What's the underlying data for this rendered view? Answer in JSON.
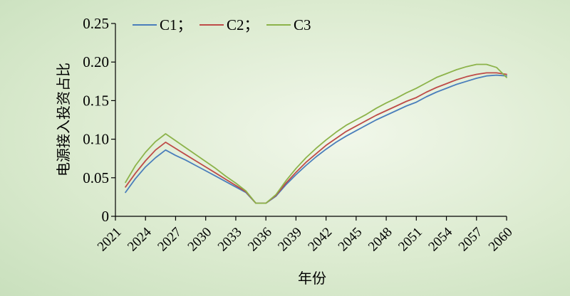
{
  "chart_data": {
    "type": "line",
    "xlabel": "年份",
    "ylabel": "电源接入投资占比",
    "xlim": [
      2021,
      2060
    ],
    "ylim": [
      0,
      0.25
    ],
    "x_ticks": [
      2021,
      2024,
      2027,
      2030,
      2033,
      2036,
      2039,
      2042,
      2045,
      2048,
      2051,
      2054,
      2057,
      2060
    ],
    "y_ticks": [
      0,
      0.05,
      0.1,
      0.15,
      0.2,
      0.25
    ],
    "y_tick_labels": [
      "0",
      "0.05",
      "0.10",
      "0.15",
      "0.20",
      "0.25"
    ],
    "grid": false,
    "legend_position": "top-left",
    "series": [
      {
        "name": "C1；",
        "color": "#4a7ebb",
        "x": [
          2022,
          2023,
          2024,
          2025,
          2026,
          2027,
          2028,
          2029,
          2030,
          2031,
          2032,
          2033,
          2034,
          2035,
          2036,
          2037,
          2038,
          2039,
          2040,
          2041,
          2042,
          2043,
          2044,
          2045,
          2046,
          2047,
          2048,
          2049,
          2050,
          2051,
          2052,
          2053,
          2054,
          2055,
          2056,
          2057,
          2058,
          2059,
          2060
        ],
        "y": [
          0.031,
          0.049,
          0.064,
          0.076,
          0.086,
          0.079,
          0.073,
          0.066,
          0.059,
          0.052,
          0.045,
          0.038,
          0.031,
          0.017,
          0.017,
          0.026,
          0.041,
          0.054,
          0.066,
          0.077,
          0.087,
          0.096,
          0.104,
          0.111,
          0.118,
          0.125,
          0.131,
          0.137,
          0.143,
          0.148,
          0.155,
          0.161,
          0.166,
          0.171,
          0.175,
          0.179,
          0.182,
          0.183,
          0.182
        ]
      },
      {
        "name": "C2；",
        "color": "#be4b48",
        "x": [
          2022,
          2023,
          2024,
          2025,
          2026,
          2027,
          2028,
          2029,
          2030,
          2031,
          2032,
          2033,
          2034,
          2035,
          2036,
          2037,
          2038,
          2039,
          2040,
          2041,
          2042,
          2043,
          2044,
          2045,
          2046,
          2047,
          2048,
          2049,
          2050,
          2051,
          2052,
          2053,
          2054,
          2055,
          2056,
          2057,
          2058,
          2059,
          2060
        ],
        "y": [
          0.038,
          0.056,
          0.072,
          0.086,
          0.096,
          0.088,
          0.08,
          0.072,
          0.064,
          0.056,
          0.048,
          0.04,
          0.032,
          0.017,
          0.017,
          0.027,
          0.043,
          0.057,
          0.07,
          0.081,
          0.092,
          0.101,
          0.11,
          0.117,
          0.124,
          0.131,
          0.137,
          0.143,
          0.149,
          0.154,
          0.161,
          0.167,
          0.172,
          0.177,
          0.181,
          0.184,
          0.186,
          0.186,
          0.184
        ]
      },
      {
        "name": "C3",
        "color": "#8cb34a",
        "x": [
          2022,
          2023,
          2024,
          2025,
          2026,
          2027,
          2028,
          2029,
          2030,
          2031,
          2032,
          2033,
          2034,
          2035,
          2036,
          2037,
          2038,
          2039,
          2040,
          2041,
          2042,
          2043,
          2044,
          2045,
          2046,
          2047,
          2048,
          2049,
          2050,
          2051,
          2052,
          2053,
          2054,
          2055,
          2056,
          2057,
          2058,
          2059,
          2060
        ],
        "y": [
          0.044,
          0.066,
          0.083,
          0.097,
          0.107,
          0.098,
          0.089,
          0.08,
          0.071,
          0.062,
          0.052,
          0.043,
          0.033,
          0.017,
          0.017,
          0.028,
          0.046,
          0.062,
          0.076,
          0.088,
          0.099,
          0.109,
          0.118,
          0.125,
          0.132,
          0.14,
          0.147,
          0.153,
          0.16,
          0.166,
          0.173,
          0.18,
          0.185,
          0.19,
          0.194,
          0.197,
          0.197,
          0.193,
          0.18
        ]
      }
    ]
  }
}
